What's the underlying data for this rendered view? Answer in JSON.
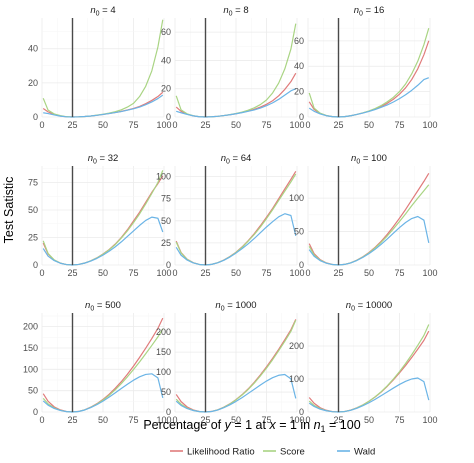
{
  "chart_data": {
    "type": "line",
    "xlabel_parts": [
      "Percentage of ",
      "y",
      " = 1 at ",
      "x",
      " = 1 in ",
      "n",
      "1",
      " = 100"
    ],
    "ylabel": "Test Satistic",
    "reference_line_x": 25,
    "xlim": [
      0,
      100
    ],
    "xticks": [
      0,
      25,
      50,
      75,
      100
    ],
    "legend": {
      "position": "bottom",
      "entries": [
        {
          "name": "Likelihood Ratio",
          "color": "#E07B7B"
        },
        {
          "name": "Score",
          "color": "#A9D483"
        },
        {
          "name": "Wald",
          "color": "#6BB4E6"
        }
      ]
    },
    "x": [
      1,
      5,
      10,
      15,
      20,
      25,
      30,
      35,
      40,
      45,
      50,
      55,
      60,
      65,
      70,
      75,
      80,
      85,
      90,
      95,
      99
    ],
    "panels": [
      {
        "label_prefix": "n",
        "label_sub": "0",
        "label_value": "= 4",
        "ylim": [
          0,
          58
        ],
        "yticks": [
          0,
          20,
          40
        ],
        "series": [
          {
            "name": "Likelihood Ratio",
            "values": [
              5,
              3,
              1.5,
              0.6,
              0.1,
              0,
              0.1,
              0.3,
              0.6,
              1,
              1.5,
              2,
              2.6,
              3.3,
              4.1,
              5,
              6.2,
              7.8,
              9.7,
              12,
              14.5
            ]
          },
          {
            "name": "Score",
            "values": [
              11,
              4,
              1.8,
              0.8,
              0.2,
              0,
              0.1,
              0.3,
              0.6,
              1.1,
              1.6,
              2.3,
              3.1,
              4.2,
              5.8,
              8,
              12,
              18,
              27,
              41,
              57
            ]
          },
          {
            "name": "Wald",
            "values": [
              2.5,
              2,
              1.2,
              0.5,
              0.1,
              0,
              0.1,
              0.3,
              0.6,
              1,
              1.5,
              2,
              2.6,
              3.2,
              4,
              4.8,
              5.8,
              7.2,
              8.8,
              10.8,
              12.8
            ]
          }
        ]
      },
      {
        "label_prefix": "n",
        "label_sub": "0",
        "label_value": "= 8",
        "ylim": [
          0,
          70
        ],
        "yticks": [
          0,
          20,
          40,
          60
        ],
        "series": [
          {
            "name": "Likelihood Ratio",
            "values": [
              7,
              4,
              2,
              0.8,
              0.2,
              0,
              0.2,
              0.5,
              1,
              1.6,
              2.3,
              3.2,
              4.2,
              5.4,
              7,
              9,
              11.5,
              15,
              19.5,
              25,
              31
            ]
          },
          {
            "name": "Score",
            "values": [
              15,
              5,
              2.2,
              0.9,
              0.2,
              0,
              0.2,
              0.5,
              1,
              1.7,
              2.5,
              3.5,
              4.8,
              6.5,
              8.8,
              12,
              17,
              24,
              34,
              48,
              66
            ]
          },
          {
            "name": "Wald",
            "values": [
              4,
              3,
              1.8,
              0.8,
              0.2,
              0,
              0.2,
              0.5,
              1,
              1.6,
              2.3,
              3.1,
              4,
              5,
              6.3,
              8,
              10,
              12.5,
              15.5,
              18.5,
              20
            ]
          }
        ]
      },
      {
        "label_prefix": "n",
        "label_sub": "0",
        "label_value": "= 16",
        "ylim": [
          0,
          78
        ],
        "yticks": [
          0,
          20,
          40,
          60
        ],
        "series": [
          {
            "name": "Likelihood Ratio",
            "values": [
              12,
              6,
              2.8,
              1.1,
              0.3,
              0,
              0.3,
              1,
              2,
              3.2,
              4.6,
              6.3,
              8.3,
              10.8,
              14,
              18,
              23,
              29.5,
              38,
              49,
              60
            ]
          },
          {
            "name": "Score",
            "values": [
              19,
              7,
              3,
              1.2,
              0.3,
              0,
              0.3,
              1,
              2,
              3.3,
              4.8,
              6.7,
              9,
              12,
              15.5,
              20,
              26,
              34,
              44,
              57,
              70
            ]
          },
          {
            "name": "Wald",
            "values": [
              7,
              4.5,
              2.4,
              1,
              0.3,
              0,
              0.3,
              1,
              2,
              3.1,
              4.4,
              5.9,
              7.6,
              9.5,
              11.8,
              14.5,
              17.5,
              21,
              25,
              29.5,
              31
            ]
          }
        ]
      },
      {
        "label_prefix": "n",
        "label_sub": "0",
        "label_value": "= 32",
        "ylim": [
          0,
          90
        ],
        "yticks": [
          0,
          25,
          50,
          75
        ],
        "series": [
          {
            "name": "Likelihood Ratio",
            "values": [
              20,
              10,
              4.5,
              1.8,
              0.4,
              0,
              0.5,
              1.8,
              3.8,
              6.5,
              10,
              14,
              19,
              25,
              32,
              40,
              48,
              57,
              66,
              74,
              81
            ]
          },
          {
            "name": "Score",
            "values": [
              22,
              10.5,
              4.6,
              1.8,
              0.4,
              0,
              0.5,
              1.8,
              3.8,
              6.4,
              9.8,
              13.8,
              18.5,
              24.5,
              31,
              38.5,
              46.5,
              55.5,
              65,
              75,
              86
            ]
          },
          {
            "name": "Wald",
            "values": [
              15,
              8,
              4,
              1.6,
              0.4,
              0,
              0.5,
              1.7,
              3.6,
              6,
              9,
              12.5,
              16.5,
              21,
              26,
              31,
              36,
              40.5,
              43.5,
              42.5,
              30
            ]
          }
        ]
      },
      {
        "label_prefix": "n",
        "label_sub": "0",
        "label_value": "= 64",
        "ylim": [
          0,
          112
        ],
        "yticks": [
          0,
          25,
          50,
          75,
          100
        ],
        "series": [
          {
            "name": "Likelihood Ratio",
            "values": [
              27,
              14,
              6.5,
              2.6,
              0.6,
              0,
              0.7,
              2.6,
              5.6,
              9.6,
              14.5,
              20.5,
              27.5,
              35.5,
              44.5,
              54,
              64,
              75,
              86,
              97,
              106
            ]
          },
          {
            "name": "Score",
            "values": [
              26,
              13.5,
              6.3,
              2.5,
              0.6,
              0,
              0.7,
              2.6,
              5.5,
              9.4,
              14.2,
              20,
              27,
              34.5,
              43,
              52.5,
              62.5,
              73,
              83.5,
              94,
              103
            ]
          },
          {
            "name": "Wald",
            "values": [
              20,
              11,
              5.5,
              2.3,
              0.6,
              0,
              0.7,
              2.5,
              5.3,
              9,
              13.5,
              18.5,
              24,
              30,
              36.5,
              43,
              49,
              54.5,
              58,
              56,
              33
            ]
          }
        ]
      },
      {
        "label_prefix": "n",
        "label_sub": "0",
        "label_value": "= 100",
        "ylim": [
          0,
          148
        ],
        "yticks": [
          0,
          50,
          100
        ],
        "series": [
          {
            "name": "Likelihood Ratio",
            "values": [
              32,
              17,
              8,
              3.2,
              0.8,
              0,
              0.9,
              3.3,
              7.2,
              12.3,
              18.7,
              26.5,
              35.5,
              46,
              57.5,
              70,
              83,
              97,
              111,
              125,
              137
            ]
          },
          {
            "name": "Score",
            "values": [
              28,
              15,
              7.2,
              2.9,
              0.7,
              0,
              0.9,
              3.2,
              7,
              12,
              18,
              25.5,
              34,
              43.5,
              54,
              65,
              76.5,
              88.5,
              100,
              111,
              120
            ]
          },
          {
            "name": "Wald",
            "values": [
              23,
              13,
              6.5,
              2.7,
              0.7,
              0,
              0.9,
              3.1,
              6.7,
              11.4,
              17,
              23.5,
              31,
              39,
              47.5,
              56,
              63.5,
              69.5,
              72.5,
              67,
              33
            ]
          }
        ]
      },
      {
        "label_prefix": "n",
        "label_sub": "0",
        "label_value": "= 500",
        "ylim": [
          0,
          232
        ],
        "yticks": [
          0,
          50,
          100,
          150,
          200
        ],
        "series": [
          {
            "name": "Likelihood Ratio",
            "values": [
              43,
              25,
              12,
              5,
              1.2,
              0,
              1.4,
              5.2,
              11.5,
              19.5,
              29.5,
              41.5,
              55.5,
              71,
              88.5,
              107.5,
              128,
              149.5,
              172,
              196,
              220
            ]
          },
          {
            "name": "Score",
            "values": [
              32,
              19,
              9.5,
              4,
              1,
              0,
              1.3,
              5,
              11,
              18.5,
              28,
              39,
              52,
              66.5,
              82.5,
              99.5,
              117.5,
              136.5,
              156,
              176,
              195
            ]
          },
          {
            "name": "Wald",
            "values": [
              26,
              16,
              8.3,
              3.6,
              0.9,
              0,
              1.2,
              4.7,
              10.3,
              17.3,
              25.5,
              34.8,
              44.8,
              55,
              65,
              74.5,
              82.5,
              88,
              89.5,
              80,
              33
            ]
          }
        ]
      },
      {
        "label_prefix": "n",
        "label_sub": "0",
        "label_value": "= 1000",
        "ylim": [
          0,
          248
        ],
        "yticks": [
          0,
          50,
          100,
          150,
          200
        ],
        "series": [
          {
            "name": "Likelihood Ratio",
            "values": [
              44,
              26,
              12.5,
              5.2,
              1.3,
              0,
              1.5,
              5.5,
              12,
              20.5,
              31,
              43.5,
              58,
              74.5,
              93,
              113,
              134.5,
              157,
              181,
              206,
              232
            ]
          },
          {
            "name": "Score",
            "values": [
              32,
              19.5,
              9.7,
              4.1,
              1,
              0,
              1.4,
              5.3,
              11.7,
              20,
              30.5,
              42.5,
              56.5,
              72.5,
              90.5,
              110,
              131,
              153.5,
              177,
              202,
              230
            ]
          },
          {
            "name": "Wald",
            "values": [
              27,
              16.5,
              8.5,
              3.7,
              0.9,
              0,
              1.3,
              4.9,
              10.7,
              18,
              26.5,
              36,
              46.5,
              57,
              67.5,
              77.5,
              86,
              92,
              94,
              83,
              34
            ]
          }
        ]
      },
      {
        "label_prefix": "n",
        "label_sub": "0",
        "label_value": "= 10000",
        "ylim": [
          0,
          300
        ],
        "yticks": [
          0,
          100,
          200
        ],
        "series": [
          {
            "name": "Likelihood Ratio",
            "values": [
              44,
              26.5,
              12.8,
              5.3,
              1.3,
              0,
              1.6,
              5.8,
              12.6,
              21.5,
              32.5,
              45.5,
              60.5,
              78,
              97.5,
              118.5,
              141,
              165,
              190.5,
              217,
              245
            ]
          },
          {
            "name": "Score",
            "values": [
              33,
              20,
              10,
              4.2,
              1,
              0,
              1.5,
              5.6,
              12.4,
              21.3,
              32.5,
              46,
              61.5,
              79.5,
              100,
              122.5,
              147,
              173.5,
              202,
              232,
              265
            ]
          },
          {
            "name": "Wald",
            "values": [
              27,
              16.8,
              8.6,
              3.8,
              0.95,
              0,
              1.4,
              5.1,
              11.2,
              19,
              28,
              38.2,
              49.5,
              61,
              72.5,
              83.5,
              93,
              100,
              103,
              92,
              36
            ]
          }
        ]
      }
    ]
  }
}
